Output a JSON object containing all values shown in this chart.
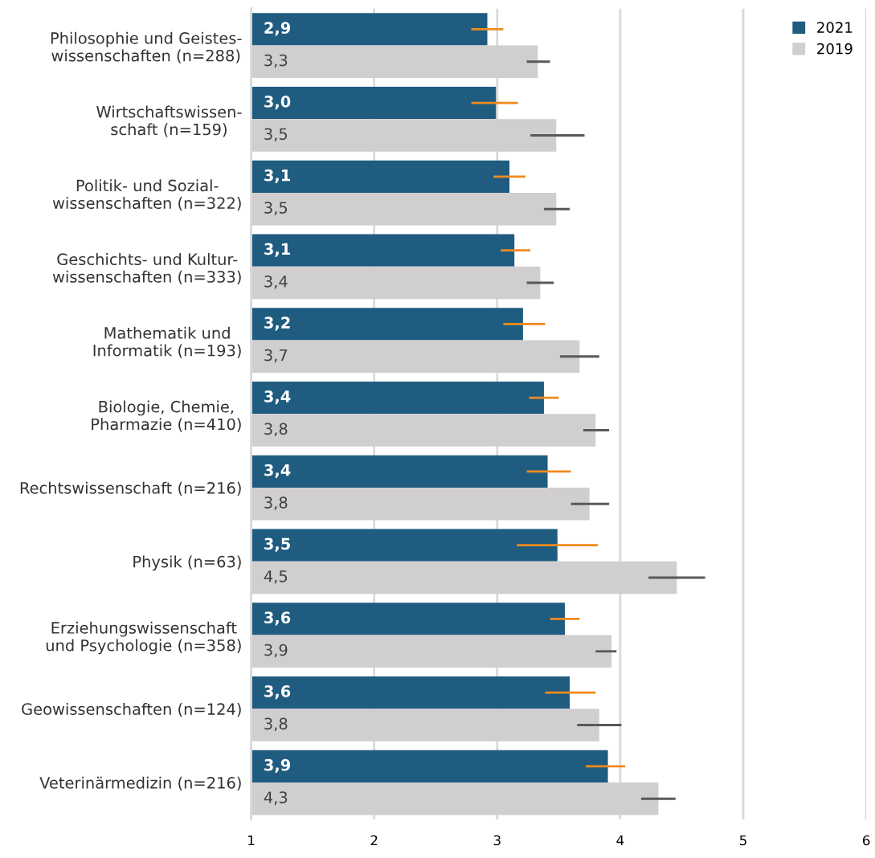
{
  "chart_data": {
    "type": "bar",
    "orientation": "horizontal",
    "categories": [
      "Philosophie und Geistes-\nwissenschaften (n=288)",
      "Wirtschaftswissen-\nschaft (n=159)",
      "Politik- und Sozial-\nwissenschaften (n=322)",
      "Geschichts- und Kultur-\nwissenschaften (n=333)",
      "Mathematik und\nInformatik (n=193)",
      "Biologie, Chemie,\nPharmazie (n=410)",
      "Rechtswissenschaft (n=216)",
      "Physik (n=63)",
      "Erziehungswissenschaft\nund Psychologie (n=358)",
      "Geowissenschaften (n=124)",
      "Veterinärmedizin (n=216)"
    ],
    "series": [
      {
        "name": "2021",
        "color": "#1f5c80",
        "values": [
          2.92,
          2.99,
          3.1,
          3.14,
          3.21,
          3.38,
          3.41,
          3.49,
          3.55,
          3.59,
          3.9
        ],
        "value_labels": [
          "2,9",
          "3,0",
          "3,1",
          "3,1",
          "3,2",
          "3,4",
          "3,4",
          "3,5",
          "3,6",
          "3,6",
          "3,9"
        ],
        "errors": [
          [
            2.79,
            3.05
          ],
          [
            2.79,
            3.17
          ],
          [
            2.97,
            3.23
          ],
          [
            3.03,
            3.27
          ],
          [
            3.05,
            3.39
          ],
          [
            3.26,
            3.5
          ],
          [
            3.24,
            3.6
          ],
          [
            3.16,
            3.82
          ],
          [
            3.43,
            3.67
          ],
          [
            3.39,
            3.8
          ],
          [
            3.72,
            4.04
          ]
        ]
      },
      {
        "name": "2019",
        "color": "#d0cece",
        "values": [
          3.33,
          3.48,
          3.48,
          3.35,
          3.67,
          3.8,
          3.75,
          4.46,
          3.93,
          3.83,
          4.31
        ],
        "value_labels": [
          "3,3",
          "3,5",
          "3,5",
          "3,4",
          "3,7",
          "3,8",
          "3,8",
          "4,5",
          "3,9",
          "3,8",
          "4,3"
        ],
        "errors": [
          [
            3.24,
            3.43
          ],
          [
            3.27,
            3.71
          ],
          [
            3.38,
            3.59
          ],
          [
            3.24,
            3.46
          ],
          [
            3.51,
            3.83
          ],
          [
            3.7,
            3.91
          ],
          [
            3.6,
            3.91
          ],
          [
            4.23,
            4.69
          ],
          [
            3.8,
            3.97
          ],
          [
            3.65,
            4.01
          ],
          [
            4.17,
            4.45
          ]
        ]
      }
    ],
    "xlim": [
      1,
      6
    ],
    "xticks": [
      1,
      2,
      3,
      4,
      5,
      6
    ],
    "grid": "x",
    "legend": "top right"
  }
}
